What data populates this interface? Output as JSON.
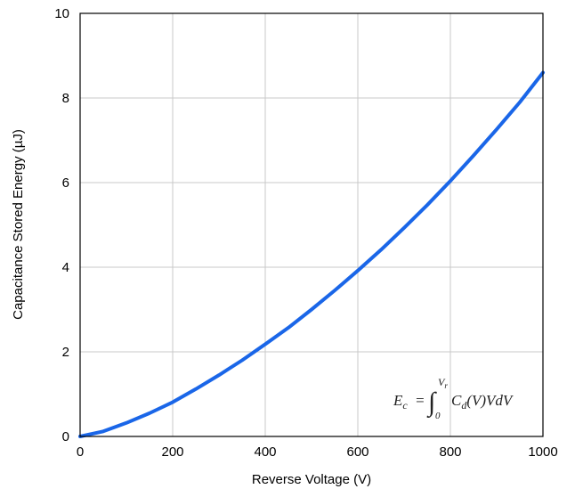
{
  "chart_data": {
    "type": "line",
    "title": "",
    "xlabel": "Reverse Voltage (V)",
    "ylabel": "Capacitance Stored Energy (µJ)",
    "xlim": [
      0,
      1000
    ],
    "ylim": [
      0,
      10
    ],
    "xticks": [
      "0",
      "200",
      "400",
      "600",
      "800",
      "1000"
    ],
    "yticks": [
      "0",
      "2",
      "4",
      "6",
      "8",
      "10"
    ],
    "grid": true,
    "series": [
      {
        "color": "#1a66e8",
        "x": [
          0,
          50,
          100,
          150,
          200,
          250,
          300,
          350,
          400,
          450,
          500,
          550,
          600,
          650,
          700,
          750,
          800,
          850,
          900,
          950,
          1000
        ],
        "y": [
          0,
          0.12,
          0.32,
          0.55,
          0.81,
          1.12,
          1.45,
          1.8,
          2.18,
          2.57,
          3.0,
          3.45,
          3.92,
          4.41,
          4.93,
          5.47,
          6.04,
          6.64,
          7.26,
          7.9,
          8.6
        ]
      }
    ],
    "annotation": {
      "lhs": "E",
      "lhs_sub": "c",
      "equals": "=",
      "integral": "∫",
      "lower": "0",
      "upper": "V",
      "upper_sub": "r",
      "integrand": "C",
      "integrand_sub": "d",
      "rest": "(V)VdV"
    }
  }
}
